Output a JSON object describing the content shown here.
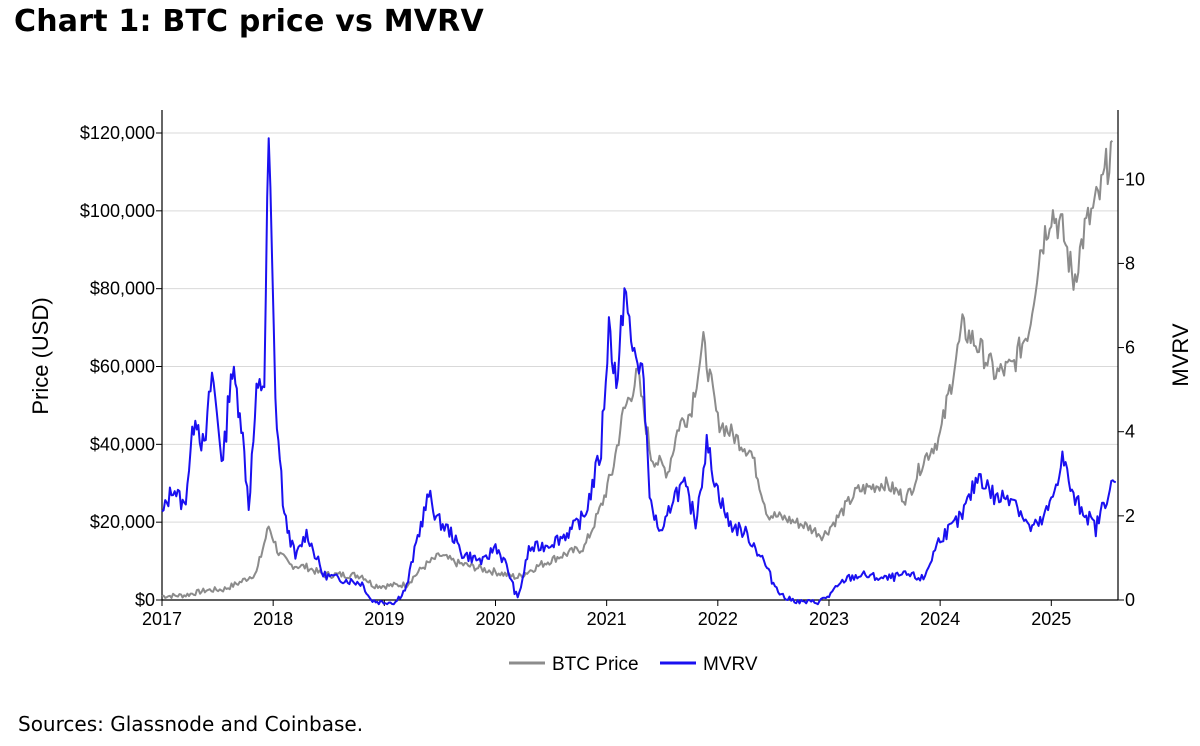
{
  "title": "Chart 1: BTC price vs MVRV",
  "source": "Sources: Glassnode and Coinbase.",
  "chart_data": {
    "type": "line",
    "xlabel": "",
    "ylabel": "Price (USD)",
    "ylabel_right": "MVRV",
    "xlim": [
      2017.0,
      2025.6
    ],
    "ylim": [
      0,
      120000
    ],
    "ylim_right": [
      0,
      11.1
    ],
    "x_ticks": [
      "2017",
      "2018",
      "2019",
      "2020",
      "2021",
      "2022",
      "2023",
      "2024",
      "2025"
    ],
    "y_ticks_left": [
      "$0",
      "$20,000",
      "$40,000",
      "$60,000",
      "$80,000",
      "$100,000",
      "$120,000"
    ],
    "y_ticks_right": [
      "0",
      "2",
      "4",
      "6",
      "8",
      "10"
    ],
    "grid": true,
    "legend_position": "bottom-center",
    "colors": {
      "btc_price": "#8c8c8c",
      "mvrv": "#1a10f0"
    },
    "series": [
      {
        "name": "BTC Price",
        "axis": "left",
        "x": [
          2017.0,
          2017.2,
          2017.4,
          2017.55,
          2017.7,
          2017.85,
          2017.96,
          2018.05,
          2018.15,
          2018.3,
          2018.45,
          2018.6,
          2018.8,
          2018.9,
          2019.0,
          2019.2,
          2019.35,
          2019.5,
          2019.65,
          2019.8,
          2020.0,
          2020.2,
          2020.4,
          2020.6,
          2020.8,
          2020.95,
          2021.05,
          2021.15,
          2021.28,
          2021.4,
          2021.55,
          2021.65,
          2021.75,
          2021.87,
          2022.0,
          2022.15,
          2022.3,
          2022.45,
          2022.6,
          2022.8,
          2022.95,
          2023.1,
          2023.25,
          2023.5,
          2023.7,
          2023.85,
          2024.0,
          2024.2,
          2024.35,
          2024.5,
          2024.65,
          2024.8,
          2024.9,
          2025.0,
          2025.1,
          2025.2,
          2025.3,
          2025.45,
          2025.55
        ],
        "y": [
          1000,
          1200,
          2500,
          2700,
          4500,
          7000,
          19000,
          12000,
          9000,
          8500,
          6500,
          6500,
          6300,
          3800,
          3600,
          4000,
          8500,
          11500,
          9500,
          8500,
          7200,
          5800,
          9000,
          11500,
          13500,
          24000,
          33000,
          48000,
          58000,
          37000,
          33000,
          45000,
          48000,
          66000,
          46000,
          42000,
          38000,
          22000,
          21000,
          19000,
          16500,
          22000,
          28000,
          30000,
          26000,
          36000,
          42000,
          70000,
          65000,
          58000,
          60000,
          70000,
          90000,
          100000,
          95000,
          82000,
          95000,
          105000,
          118000
        ]
      },
      {
        "name": "MVRV",
        "axis": "right",
        "x": [
          2017.0,
          2017.1,
          2017.2,
          2017.3,
          2017.38,
          2017.45,
          2017.55,
          2017.62,
          2017.7,
          2017.78,
          2017.85,
          2017.92,
          2017.96,
          2018.02,
          2018.1,
          2018.2,
          2018.3,
          2018.45,
          2018.6,
          2018.8,
          2018.88,
          2018.95,
          2019.1,
          2019.2,
          2019.3,
          2019.4,
          2019.48,
          2019.6,
          2019.7,
          2019.8,
          2019.9,
          2020.0,
          2020.1,
          2020.2,
          2020.3,
          2020.45,
          2020.6,
          2020.7,
          2020.8,
          2020.9,
          2020.95,
          2021.02,
          2021.1,
          2021.16,
          2021.22,
          2021.32,
          2021.4,
          2021.5,
          2021.6,
          2021.7,
          2021.8,
          2021.9,
          2022.0,
          2022.1,
          2022.25,
          2022.4,
          2022.5,
          2022.6,
          2022.75,
          2022.9,
          2023.0,
          2023.15,
          2023.3,
          2023.5,
          2023.7,
          2023.85,
          2024.0,
          2024.1,
          2024.2,
          2024.35,
          2024.5,
          2024.65,
          2024.8,
          2024.9,
          2025.0,
          2025.1,
          2025.2,
          2025.3,
          2025.4,
          2025.5,
          2025.58
        ],
        "y": [
          2.0,
          2.7,
          2.2,
          4.5,
          3.5,
          5.4,
          3.2,
          5.5,
          4.6,
          2.3,
          4.8,
          5.3,
          11.0,
          4.7,
          2.0,
          1.0,
          1.6,
          0.6,
          0.5,
          0.4,
          0.0,
          -0.05,
          -0.05,
          0.3,
          1.5,
          2.5,
          1.9,
          1.6,
          1.1,
          1.0,
          0.9,
          1.3,
          0.8,
          0.0,
          1.2,
          1.3,
          1.5,
          1.7,
          2.0,
          3.0,
          3.6,
          6.5,
          5.0,
          7.6,
          6.0,
          5.5,
          2.2,
          1.5,
          2.5,
          2.7,
          1.9,
          3.7,
          2.6,
          1.8,
          1.6,
          1.0,
          0.4,
          0.05,
          -0.05,
          -0.05,
          0.1,
          0.5,
          0.6,
          0.5,
          0.6,
          0.5,
          1.5,
          1.7,
          2.0,
          3.0,
          2.4,
          2.5,
          1.7,
          1.8,
          2.3,
          3.4,
          2.4,
          2.1,
          1.7,
          2.5,
          2.8
        ]
      }
    ]
  }
}
